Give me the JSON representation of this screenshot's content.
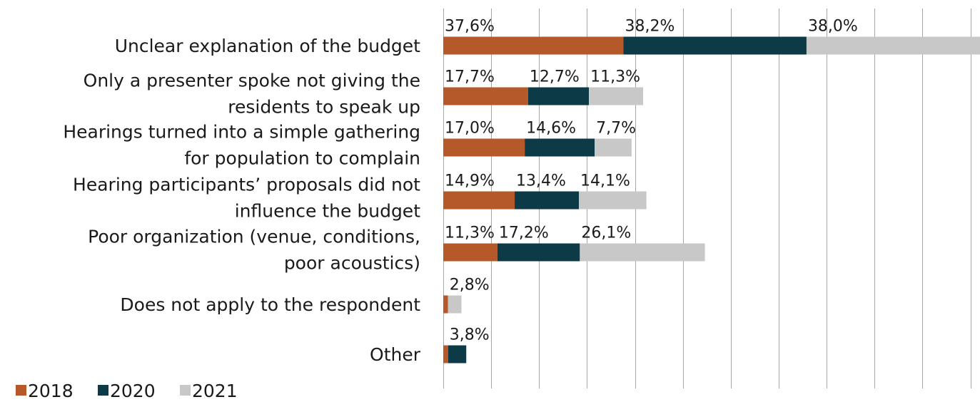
{
  "chart_data": {
    "type": "bar",
    "orientation": "horizontal",
    "stacked": true,
    "categories": [
      [
        "Unclear  explanation of the budget"
      ],
      [
        "Only a presenter spoke not giving the",
        "residents to speak up"
      ],
      [
        "Hearings turned into a simple gathering",
        "for population to complain"
      ],
      [
        "Hearing participants’ proposals did not",
        "influence the budget"
      ],
      [
        "Poor organization (venue, conditions,",
        "poor acoustics)"
      ],
      [
        "Does not apply to the respondent"
      ],
      [
        "Other"
      ]
    ],
    "series": [
      {
        "name": "2018",
        "color": "#b5592a",
        "values": [
          37.6,
          17.7,
          17.0,
          14.9,
          11.3,
          1.0,
          1.0
        ],
        "labels": [
          "37,6%",
          "17,7%",
          "17,0%",
          "14,9%",
          "11,3%",
          "",
          ""
        ]
      },
      {
        "name": "2020",
        "color": "#0c3a47",
        "values": [
          38.2,
          12.7,
          14.6,
          13.4,
          17.2,
          0.0,
          3.8
        ],
        "labels": [
          "38,2%",
          "12,7%",
          "14,6%",
          "13,4%",
          "17,2%",
          "",
          "3,8%"
        ]
      },
      {
        "name": "2021",
        "color": "#c8c8c8",
        "values": [
          38.0,
          11.3,
          7.7,
          14.1,
          26.1,
          2.8,
          0.0
        ],
        "labels": [
          "38,0%",
          "11,3%",
          "7,7%",
          "14,1%",
          "26,1%",
          "2,8%",
          ""
        ]
      }
    ],
    "xlim": [
      0,
      112
    ],
    "grid": true,
    "legend": {
      "position": "bottom-left",
      "entries": [
        "2018",
        "2020",
        "2021"
      ]
    },
    "title": "",
    "xlabel": "",
    "ylabel": ""
  }
}
